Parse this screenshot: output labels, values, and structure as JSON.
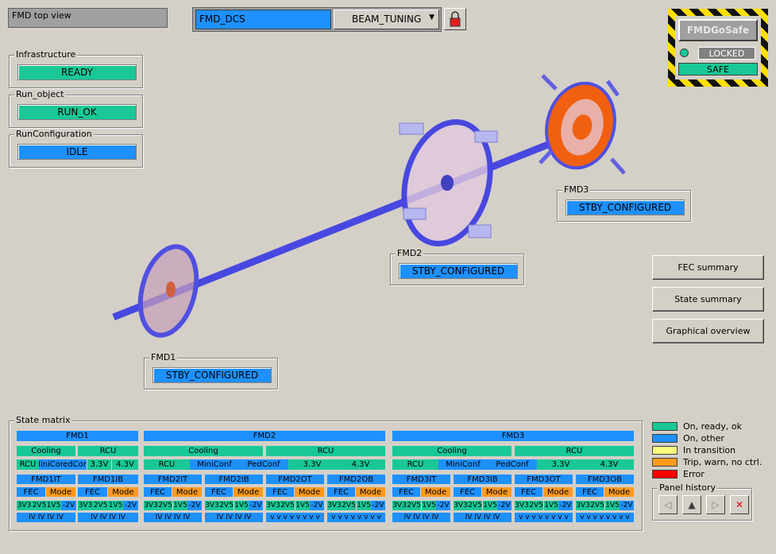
{
  "title": "FMD top view",
  "dcs": {
    "name": "FMD_DCS",
    "mode": "BEAM_TUNING"
  },
  "gosafe": {
    "button": "FMDGoSafe",
    "lock": "LOCKED",
    "state": "SAFE"
  },
  "left": [
    {
      "label": "Infrastructure",
      "state": "READY"
    },
    {
      "label": "Run_object",
      "state": "RUN_OK"
    },
    {
      "label": "RunConfiguration",
      "state": "IDLE"
    }
  ],
  "detectors": {
    "fmd1": {
      "label": "FMD1",
      "state": "STBY_CONFIGURED"
    },
    "fmd2": {
      "label": "FMD2",
      "state": "STBY_CONFIGURED"
    },
    "fmd3": {
      "label": "FMD3",
      "state": "STBY_CONFIGURED"
    }
  },
  "side_buttons": [
    "FEC summary",
    "State summary",
    "Graphical overview"
  ],
  "matrix": {
    "label": "State matrix",
    "fmd1": {
      "title": "FMD1",
      "cooling": "Cooling",
      "rcu": "RCU",
      "row3": [
        "RCU",
        "MiniConf",
        "PedConf",
        "3.3V",
        "4.3V"
      ],
      "rings": [
        "FMD1IT",
        "FMD1IB"
      ]
    },
    "fmd2": {
      "title": "FMD2",
      "cooling": "Cooling",
      "rcu": "RCU",
      "row3": [
        "RCU",
        "MiniConf",
        "PedConf",
        "3.3V",
        "4.3V"
      ],
      "rings": [
        "FMD2IT",
        "FMD2IB",
        "FMD2OT",
        "FMD2OB"
      ]
    },
    "fmd3": {
      "title": "FMD3",
      "cooling": "Cooling",
      "rcu": "RCU",
      "row3": [
        "RCU",
        "MiniConf",
        "PedConf",
        "3.3V",
        "4.3V"
      ],
      "rings": [
        "FMD3IT",
        "FMD3IB",
        "FMD3OT",
        "FMD3OB"
      ]
    },
    "fec": "FEC",
    "mode": "Mode",
    "volts": [
      "3V3",
      "2V5",
      "1V5",
      "-2V"
    ],
    "hv_inner": "IV IV IV IV",
    "hv_outer": "v v v v v v v v"
  },
  "legend": [
    {
      "color": "#19c896",
      "text": "On, ready, ok"
    },
    {
      "color": "#1e90ff",
      "text": "On, other"
    },
    {
      "color": "#ffff80",
      "text": "In transition"
    },
    {
      "color": "#ff9a1e",
      "text": "Trip, warn, no ctrl."
    },
    {
      "color": "#ff0000",
      "text": "Error"
    }
  ],
  "history": {
    "label": "Panel history",
    "close": "✕"
  }
}
